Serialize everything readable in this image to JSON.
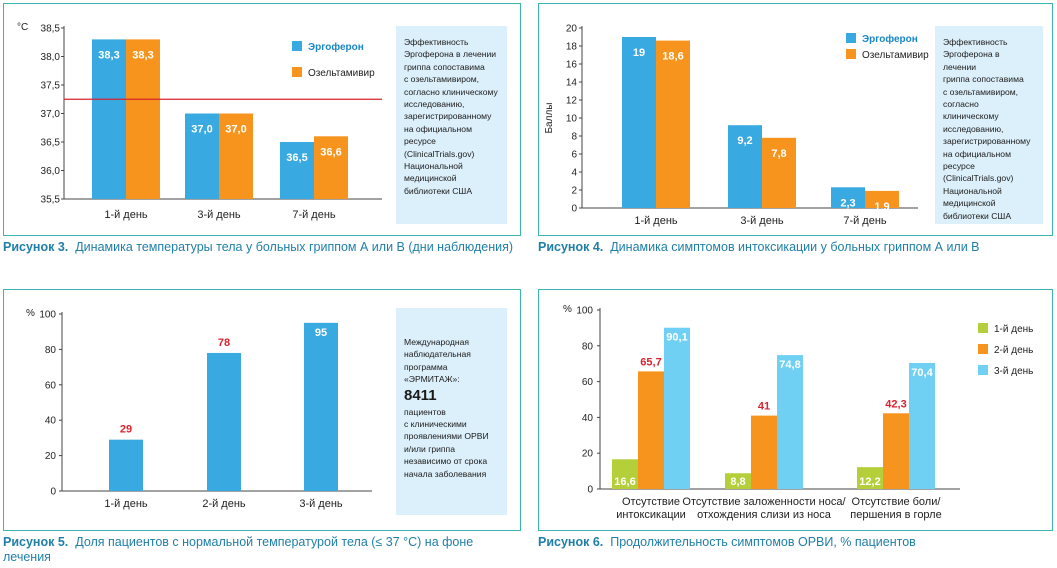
{
  "colors": {
    "ergoferon": "#39a9e1",
    "oseltamivir": "#f7941d",
    "day1": "#b4cf3a",
    "day2": "#f7941d",
    "day3": "#6fd0f4",
    "frame": "#3cb4b0",
    "caption": "#1f7fa8",
    "threshold": "#d9232d",
    "note_bg": "#dcf0fb"
  },
  "fig3": {
    "caption_num": "Рисунок 3.",
    "caption_text": "Динамика температуры тела у больных гриппом А или В (дни наблюдения)",
    "note": [
      "Эффективность",
      "Эргоферона в лечении",
      "гриппа сопоставима",
      "с озельтамивиром,",
      "согласно клиническому",
      "исследованию,",
      "зарегистрированному",
      "на официальном",
      "ресурсе",
      "(ClinicalTrials.gov)",
      "Национальной",
      "медицинской",
      "библиотеки США"
    ]
  },
  "fig4": {
    "caption_num": "Рисунок 4.",
    "caption_text": "Динамика симптомов интоксикации у больных гриппом А или В",
    "note": [
      "Эффективность",
      "Эргоферона в лечении",
      "гриппа сопоставима",
      "с озельтамивиром,",
      "согласно клиническому",
      "исследованию,",
      "зарегистрированному",
      "на официальном",
      "ресурсе",
      "(ClinicalTrials.gov)",
      "Национальной",
      "медицинской",
      "библиотеки США"
    ]
  },
  "fig5": {
    "caption_num": "Рисунок 5.",
    "caption_text": "Доля пациентов с нормальной температурой тела (≤ 37 °C) на фоне лечения",
    "note_lines_top": [
      "Международная",
      "наблюдательная",
      "программа «ЭРМИТАЖ»:"
    ],
    "note_big": "8411",
    "note_lines_bottom": [
      "пациентов",
      "с клиническими",
      "проявлениями ОРВИ",
      "и/или гриппа",
      "независимо от срока",
      "начала заболевания"
    ]
  },
  "fig6": {
    "caption_num": "Рисунок 6.",
    "caption_text": "Продолжительность симптомов ОРВИ, % пациентов"
  },
  "chart_data": [
    {
      "type": "bar",
      "ylabel": "°C",
      "categories": [
        "1-й день",
        "3-й день",
        "7-й день"
      ],
      "series": [
        {
          "name": "Эргоферон",
          "values": [
            38.3,
            37.0,
            36.5
          ],
          "labels": [
            "38,3",
            "37,0",
            "36,5"
          ]
        },
        {
          "name": "Озельтамивир",
          "values": [
            38.3,
            37.0,
            36.6
          ],
          "labels": [
            "38,3",
            "37,0",
            "36,6"
          ]
        }
      ],
      "ylim": [
        35.5,
        38.5
      ],
      "yticks": [
        35.5,
        36.0,
        36.5,
        37.0,
        37.5,
        38.0,
        38.5
      ],
      "ytick_labels": [
        "35,5",
        "36,0",
        "36,5",
        "37,0",
        "37,5",
        "38,0",
        "38,5"
      ],
      "reference_line": 37.25,
      "grid": false,
      "legend": "top-right"
    },
    {
      "type": "bar",
      "ylabel": "Баллы",
      "categories": [
        "1-й день",
        "3-й день",
        "7-й день"
      ],
      "series": [
        {
          "name": "Эргоферон",
          "values": [
            19,
            9.2,
            2.3
          ],
          "labels": [
            "19",
            "9,2",
            "2,3"
          ]
        },
        {
          "name": "Озельтамивир",
          "values": [
            18.6,
            7.8,
            1.9
          ],
          "labels": [
            "18,6",
            "7,8",
            "1,9"
          ]
        }
      ],
      "ylim": [
        0,
        20
      ],
      "yticks": [
        0,
        2,
        4,
        6,
        8,
        10,
        12,
        14,
        16,
        18,
        20
      ],
      "ytick_labels": [
        "0",
        "2",
        "4",
        "6",
        "8",
        "10",
        "12",
        "14",
        "16",
        "18",
        "20"
      ],
      "grid": false,
      "legend": "top-right"
    },
    {
      "type": "bar",
      "ylabel": "%",
      "categories": [
        "1-й день",
        "2-й день",
        "3-й день"
      ],
      "series": [
        {
          "values": [
            29,
            78,
            95
          ],
          "labels": [
            "29",
            "78",
            "95"
          ]
        }
      ],
      "ylim": [
        0,
        100
      ],
      "yticks": [
        0,
        20,
        40,
        60,
        80,
        100
      ],
      "ytick_labels": [
        "0",
        "20",
        "40",
        "60",
        "80",
        "100"
      ],
      "grid": false
    },
    {
      "type": "bar",
      "ylabel": "%",
      "categories": [
        [
          "Отсутствие",
          "интоксикации"
        ],
        [
          "Отсутствие заложенности носа/",
          "отхождения слизи из носа"
        ],
        [
          "Отсутствие боли/",
          "першения в горле"
        ]
      ],
      "series": [
        {
          "name": "1-й день",
          "values": [
            16.6,
            8.8,
            12.2
          ],
          "labels": [
            "16,6",
            "8,8",
            "12,2"
          ]
        },
        {
          "name": "2-й день",
          "values": [
            65.7,
            41,
            42.3
          ],
          "labels": [
            "65,7",
            "41",
            "42,3"
          ]
        },
        {
          "name": "3-й день",
          "values": [
            90.1,
            74.8,
            70.4
          ],
          "labels": [
            "90,1",
            "74,8",
            "70,4"
          ]
        }
      ],
      "ylim": [
        0,
        100
      ],
      "yticks": [
        0,
        20,
        40,
        60,
        80,
        100
      ],
      "ytick_labels": [
        "0",
        "20",
        "40",
        "60",
        "80",
        "100"
      ],
      "grid": false,
      "legend": "right"
    }
  ]
}
